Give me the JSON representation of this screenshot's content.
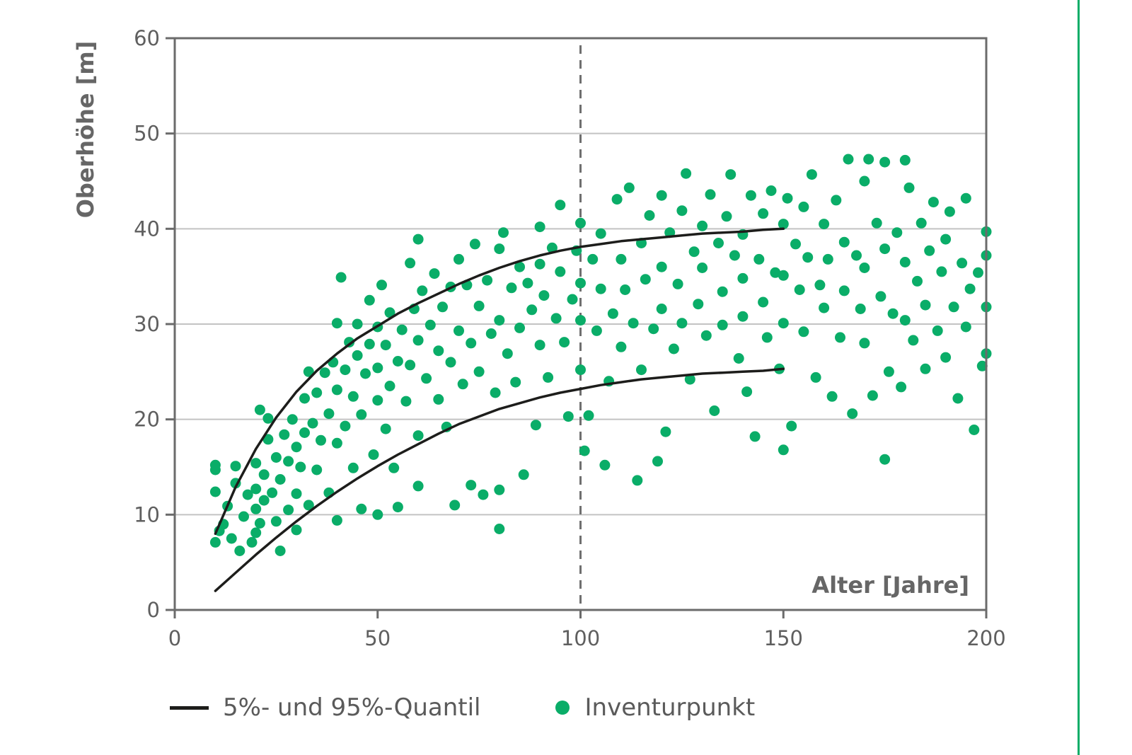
{
  "chart_data": {
    "type": "scatter",
    "title": "",
    "xlabel": "Alter [Jahre]",
    "ylabel": "Oberhöhe [m]",
    "xlim": [
      0,
      200
    ],
    "ylim": [
      0,
      60
    ],
    "x_ticks": [
      0,
      50,
      100,
      150,
      200
    ],
    "y_ticks": [
      0,
      10,
      20,
      30,
      40,
      50,
      60
    ],
    "x_tick_labels": [
      "0",
      "50",
      "100",
      "150",
      "200"
    ],
    "y_tick_labels": [
      "0",
      "10",
      "20",
      "30",
      "40",
      "50",
      "60"
    ],
    "grid": "horizontal",
    "reference_line": {
      "x": 100,
      "style": "dashed"
    },
    "legend_position": "bottom",
    "series": [
      {
        "name": "Inventurpunkt",
        "kind": "scatter",
        "color": "#0aad68",
        "points": [
          [
            10,
            7.1
          ],
          [
            10,
            12.4
          ],
          [
            10,
            14.7
          ],
          [
            10,
            15.2
          ],
          [
            11,
            8.3
          ],
          [
            12,
            9.0
          ],
          [
            13,
            10.9
          ],
          [
            14,
            7.5
          ],
          [
            15,
            13.3
          ],
          [
            15,
            15.1
          ],
          [
            16,
            6.2
          ],
          [
            17,
            9.8
          ],
          [
            18,
            12.1
          ],
          [
            19,
            7.1
          ],
          [
            20,
            8.1
          ],
          [
            20,
            10.6
          ],
          [
            20,
            12.7
          ],
          [
            20,
            15.4
          ],
          [
            21,
            21.0
          ],
          [
            21,
            9.1
          ],
          [
            22,
            11.5
          ],
          [
            22,
            14.2
          ],
          [
            23,
            17.9
          ],
          [
            23,
            20.1
          ],
          [
            24,
            12.3
          ],
          [
            25,
            16.0
          ],
          [
            25,
            9.3
          ],
          [
            26,
            6.2
          ],
          [
            26,
            13.7
          ],
          [
            27,
            18.4
          ],
          [
            28,
            10.5
          ],
          [
            28,
            15.6
          ],
          [
            29,
            20.0
          ],
          [
            30,
            12.2
          ],
          [
            30,
            17.1
          ],
          [
            30,
            8.4
          ],
          [
            31,
            15.0
          ],
          [
            32,
            22.2
          ],
          [
            32,
            18.6
          ],
          [
            33,
            25.0
          ],
          [
            33,
            11.0
          ],
          [
            34,
            19.6
          ],
          [
            35,
            14.7
          ],
          [
            35,
            22.8
          ],
          [
            36,
            17.8
          ],
          [
            37,
            24.9
          ],
          [
            38,
            12.3
          ],
          [
            38,
            20.6
          ],
          [
            39,
            26.0
          ],
          [
            40,
            30.1
          ],
          [
            40,
            23.1
          ],
          [
            40,
            9.4
          ],
          [
            40,
            17.5
          ],
          [
            41,
            34.9
          ],
          [
            42,
            25.2
          ],
          [
            42,
            19.3
          ],
          [
            43,
            28.1
          ],
          [
            44,
            14.9
          ],
          [
            44,
            22.4
          ],
          [
            45,
            30.0
          ],
          [
            45,
            26.7
          ],
          [
            46,
            10.6
          ],
          [
            46,
            20.5
          ],
          [
            47,
            24.8
          ],
          [
            48,
            32.5
          ],
          [
            48,
            27.9
          ],
          [
            49,
            16.3
          ],
          [
            50,
            29.7
          ],
          [
            50,
            22.0
          ],
          [
            50,
            10.0
          ],
          [
            50,
            25.4
          ],
          [
            51,
            34.1
          ],
          [
            52,
            19.0
          ],
          [
            52,
            27.8
          ],
          [
            53,
            23.5
          ],
          [
            53,
            31.2
          ],
          [
            54,
            14.9
          ],
          [
            55,
            26.1
          ],
          [
            55,
            10.8
          ],
          [
            56,
            29.4
          ],
          [
            57,
            21.9
          ],
          [
            58,
            36.4
          ],
          [
            58,
            25.7
          ],
          [
            59,
            31.6
          ],
          [
            60,
            38.9
          ],
          [
            60,
            28.3
          ],
          [
            60,
            18.3
          ],
          [
            60,
            13.0
          ],
          [
            61,
            33.5
          ],
          [
            62,
            24.3
          ],
          [
            63,
            29.9
          ],
          [
            64,
            35.3
          ],
          [
            65,
            22.1
          ],
          [
            65,
            27.2
          ],
          [
            66,
            31.8
          ],
          [
            67,
            19.2
          ],
          [
            68,
            33.9
          ],
          [
            68,
            26.0
          ],
          [
            69,
            11.0
          ],
          [
            70,
            29.3
          ],
          [
            70,
            36.8
          ],
          [
            71,
            23.7
          ],
          [
            72,
            34.1
          ],
          [
            73,
            28.0
          ],
          [
            73,
            13.1
          ],
          [
            74,
            38.4
          ],
          [
            75,
            31.9
          ],
          [
            75,
            25.0
          ],
          [
            76,
            12.1
          ],
          [
            77,
            34.6
          ],
          [
            78,
            29.0
          ],
          [
            79,
            22.8
          ],
          [
            80,
            37.9
          ],
          [
            80,
            30.4
          ],
          [
            80,
            8.5
          ],
          [
            80,
            12.6
          ],
          [
            81,
            39.6
          ],
          [
            82,
            26.9
          ],
          [
            83,
            33.8
          ],
          [
            84,
            23.9
          ],
          [
            85,
            36.0
          ],
          [
            85,
            29.6
          ],
          [
            86,
            14.2
          ],
          [
            87,
            34.3
          ],
          [
            88,
            31.5
          ],
          [
            89,
            19.4
          ],
          [
            90,
            40.2
          ],
          [
            90,
            27.8
          ],
          [
            90,
            36.3
          ],
          [
            91,
            33.0
          ],
          [
            92,
            24.4
          ],
          [
            93,
            38.0
          ],
          [
            94,
            30.6
          ],
          [
            95,
            42.5
          ],
          [
            95,
            35.5
          ],
          [
            96,
            28.1
          ],
          [
            97,
            20.3
          ],
          [
            98,
            32.6
          ],
          [
            99,
            37.7
          ],
          [
            100,
            40.6
          ],
          [
            100,
            30.4
          ],
          [
            100,
            25.2
          ],
          [
            100,
            34.3
          ],
          [
            101,
            16.7
          ],
          [
            102,
            20.4
          ],
          [
            103,
            36.8
          ],
          [
            104,
            29.3
          ],
          [
            105,
            39.5
          ],
          [
            105,
            33.7
          ],
          [
            106,
            15.2
          ],
          [
            107,
            24.0
          ],
          [
            108,
            31.1
          ],
          [
            109,
            43.1
          ],
          [
            110,
            36.8
          ],
          [
            110,
            27.6
          ],
          [
            111,
            33.6
          ],
          [
            112,
            44.3
          ],
          [
            113,
            30.1
          ],
          [
            114,
            13.6
          ],
          [
            115,
            38.5
          ],
          [
            115,
            25.2
          ],
          [
            116,
            34.7
          ],
          [
            117,
            41.4
          ],
          [
            118,
            29.5
          ],
          [
            119,
            15.6
          ],
          [
            120,
            36.0
          ],
          [
            120,
            43.5
          ],
          [
            120,
            31.6
          ],
          [
            121,
            18.7
          ],
          [
            122,
            39.6
          ],
          [
            123,
            27.4
          ],
          [
            124,
            34.2
          ],
          [
            125,
            41.9
          ],
          [
            125,
            30.1
          ],
          [
            126,
            45.8
          ],
          [
            127,
            24.2
          ],
          [
            128,
            37.6
          ],
          [
            129,
            32.1
          ],
          [
            130,
            40.3
          ],
          [
            130,
            35.9
          ],
          [
            131,
            28.8
          ],
          [
            132,
            43.6
          ],
          [
            133,
            20.9
          ],
          [
            134,
            38.5
          ],
          [
            135,
            33.4
          ],
          [
            135,
            29.9
          ],
          [
            136,
            41.3
          ],
          [
            137,
            45.7
          ],
          [
            138,
            37.2
          ],
          [
            139,
            26.4
          ],
          [
            140,
            39.4
          ],
          [
            140,
            34.8
          ],
          [
            140,
            30.8
          ],
          [
            141,
            22.9
          ],
          [
            142,
            43.5
          ],
          [
            143,
            18.2
          ],
          [
            144,
            36.8
          ],
          [
            145,
            41.6
          ],
          [
            145,
            32.3
          ],
          [
            146,
            28.6
          ],
          [
            147,
            44.0
          ],
          [
            148,
            35.4
          ],
          [
            149,
            25.3
          ],
          [
            150,
            40.5
          ],
          [
            150,
            35.1
          ],
          [
            150,
            30.1
          ],
          [
            150,
            16.8
          ],
          [
            151,
            43.2
          ],
          [
            152,
            19.3
          ],
          [
            153,
            38.4
          ],
          [
            154,
            33.6
          ],
          [
            155,
            29.2
          ],
          [
            155,
            42.3
          ],
          [
            156,
            37.0
          ],
          [
            157,
            45.7
          ],
          [
            158,
            24.4
          ],
          [
            159,
            34.1
          ],
          [
            160,
            40.5
          ],
          [
            160,
            31.7
          ],
          [
            161,
            36.8
          ],
          [
            162,
            22.4
          ],
          [
            163,
            43.0
          ],
          [
            164,
            28.6
          ],
          [
            165,
            38.6
          ],
          [
            165,
            33.5
          ],
          [
            166,
            47.3
          ],
          [
            167,
            20.6
          ],
          [
            168,
            37.2
          ],
          [
            169,
            31.6
          ],
          [
            170,
            45.0
          ],
          [
            170,
            35.9
          ],
          [
            170,
            28.0
          ],
          [
            171,
            47.3
          ],
          [
            172,
            22.5
          ],
          [
            173,
            40.6
          ],
          [
            174,
            32.9
          ],
          [
            175,
            47.0
          ],
          [
            175,
            15.8
          ],
          [
            175,
            37.9
          ],
          [
            176,
            25.0
          ],
          [
            177,
            31.1
          ],
          [
            178,
            39.6
          ],
          [
            179,
            23.4
          ],
          [
            180,
            47.2
          ],
          [
            180,
            36.5
          ],
          [
            180,
            30.4
          ],
          [
            181,
            44.3
          ],
          [
            182,
            28.3
          ],
          [
            183,
            34.5
          ],
          [
            184,
            40.6
          ],
          [
            185,
            25.3
          ],
          [
            185,
            32.0
          ],
          [
            186,
            37.7
          ],
          [
            187,
            42.8
          ],
          [
            188,
            29.3
          ],
          [
            189,
            35.5
          ],
          [
            190,
            38.9
          ],
          [
            190,
            26.5
          ],
          [
            191,
            41.8
          ],
          [
            192,
            31.8
          ],
          [
            193,
            22.2
          ],
          [
            194,
            36.4
          ],
          [
            195,
            43.2
          ],
          [
            195,
            29.7
          ],
          [
            196,
            33.7
          ],
          [
            197,
            18.9
          ],
          [
            198,
            35.4
          ],
          [
            199,
            25.6
          ],
          [
            200,
            39.7
          ],
          [
            200,
            31.8
          ],
          [
            200,
            37.2
          ],
          [
            200,
            26.9
          ]
        ]
      },
      {
        "name": "5%- und 95%-Quantil",
        "kind": "line",
        "color": "#1d1d1b",
        "lines": [
          {
            "label": "95%",
            "x": [
              10,
              15,
              20,
              25,
              30,
              35,
              40,
              45,
              50,
              55,
              60,
              65,
              70,
              75,
              80,
              85,
              90,
              95,
              100,
              105,
              110,
              115,
              120,
              125,
              130,
              135,
              140,
              145,
              150
            ],
            "y": [
              8.0,
              12.9,
              16.9,
              20.2,
              22.9,
              25.1,
              26.9,
              28.5,
              29.8,
              31.1,
              32.2,
              33.2,
              34.2,
              35.1,
              35.9,
              36.6,
              37.2,
              37.7,
              38.1,
              38.4,
              38.7,
              38.9,
              39.1,
              39.3,
              39.5,
              39.6,
              39.7,
              39.9,
              40.0
            ]
          },
          {
            "label": "5%",
            "x": [
              10,
              15,
              20,
              25,
              30,
              35,
              40,
              45,
              50,
              55,
              60,
              65,
              70,
              75,
              80,
              85,
              90,
              95,
              100,
              105,
              110,
              115,
              120,
              125,
              130,
              135,
              140,
              145,
              150
            ],
            "y": [
              2.0,
              3.9,
              5.8,
              7.6,
              9.3,
              10.9,
              12.4,
              13.8,
              15.1,
              16.3,
              17.4,
              18.5,
              19.5,
              20.3,
              21.1,
              21.7,
              22.3,
              22.8,
              23.2,
              23.6,
              23.9,
              24.2,
              24.4,
              24.6,
              24.8,
              24.9,
              25.0,
              25.1,
              25.3
            ]
          }
        ]
      }
    ]
  },
  "legend": {
    "line_label": "5%- und 95%-Quantil",
    "dot_label": "Inventurpunkt"
  },
  "colors": {
    "points": "#0aad68",
    "curves": "#1d1d1b",
    "axis": "#6b6b6b",
    "grid": "#c3c3c3",
    "side_rule": "#0aad68"
  }
}
